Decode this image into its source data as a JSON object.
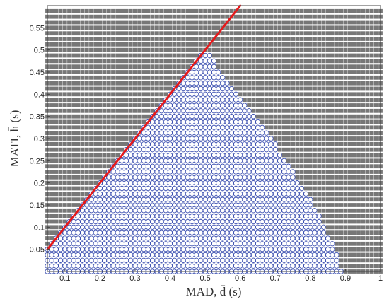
{
  "chart_data": {
    "type": "scatter",
    "xlabel": "MAD, d̄ (s)",
    "ylabel": "MATI, h̄ (s)",
    "xlim": [
      0.05,
      1.0
    ],
    "ylim": [
      0.0,
      0.6
    ],
    "x_ticks": [
      "0.1",
      "0.2",
      "0.3",
      "0.4",
      "0.5",
      "0.6",
      "0.7",
      "0.8",
      "0.9",
      "1"
    ],
    "y_ticks": [
      "0.05",
      "0.1",
      "0.15",
      "0.2",
      "0.25",
      "0.3",
      "0.35",
      "0.4",
      "0.45",
      "0.5",
      "0.55"
    ],
    "grid": {
      "x_start": 0.05,
      "x_step": 0.0125,
      "x_count": 77,
      "y_start": 0.0,
      "y_step": 0.0125,
      "y_count": 48
    },
    "region_boundary": {
      "y": [
        0.0,
        0.05,
        0.1,
        0.15,
        0.2,
        0.25,
        0.3,
        0.35,
        0.4,
        0.45,
        0.475,
        0.49
      ],
      "x_max": [
        0.89,
        0.87,
        0.84,
        0.81,
        0.77,
        0.73,
        0.69,
        0.64,
        0.59,
        0.54,
        0.525,
        0.51
      ]
    },
    "series": [
      {
        "marker": "square",
        "color": "#777777"
      },
      {
        "marker": "circle",
        "color": "#3b4fb0"
      },
      {
        "type": "line",
        "x": [
          0.05,
          0.6
        ],
        "y": [
          0.05,
          0.6
        ],
        "color": "#e41a1c"
      }
    ]
  }
}
